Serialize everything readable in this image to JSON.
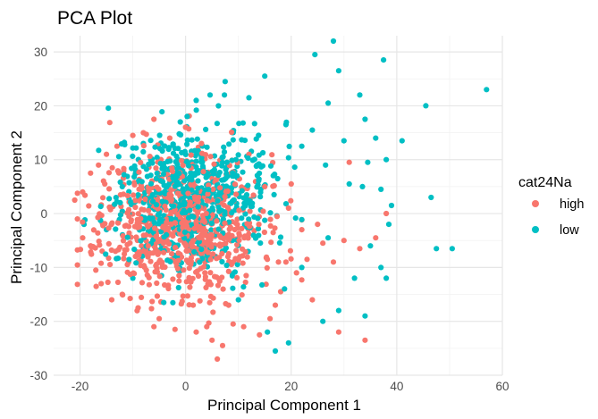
{
  "chart_data": {
    "type": "scatter",
    "title": "PCA Plot",
    "xlabel": "Principal Component 1",
    "ylabel": "Principal Component 2",
    "xlim": [
      -25,
      60
    ],
    "ylim": [
      -30,
      33
    ],
    "x_ticks": [
      -20,
      0,
      20,
      40,
      60
    ],
    "y_ticks": [
      -30,
      -20,
      -10,
      0,
      10,
      20,
      30
    ],
    "grid": true,
    "legend": {
      "title": "cat24Na",
      "placement": "right",
      "entries": [
        {
          "label": "high",
          "color": "#F8766D"
        },
        {
          "label": "low",
          "color": "#00BFC4"
        }
      ]
    },
    "series": [
      {
        "name": "high",
        "color": "#F8766D",
        "points": [
          [
            -21,
            2.5
          ],
          [
            -20.5,
            -1
          ],
          [
            -19.5,
            -4.5
          ],
          [
            -19.5,
            4
          ],
          [
            -18,
            7.5
          ],
          [
            -18,
            -6
          ],
          [
            -17,
            -10.5
          ],
          [
            -16.5,
            9
          ],
          [
            -16,
            -13
          ],
          [
            -15,
            11
          ],
          [
            -14,
            -16
          ],
          [
            -13,
            12.5
          ],
          [
            -12,
            -15
          ],
          [
            -10,
            14.5
          ],
          [
            -9,
            -17.5
          ],
          [
            -8,
            15
          ],
          [
            -6,
            17.5
          ],
          [
            -5,
            -19.5
          ],
          [
            -3,
            14
          ],
          [
            -2,
            -21.5
          ],
          [
            0,
            16
          ],
          [
            2,
            -22
          ],
          [
            3,
            13
          ],
          [
            5,
            -23.5
          ],
          [
            6,
            -27
          ],
          [
            7,
            -24.5
          ],
          [
            9,
            -20.5
          ],
          [
            11,
            -21
          ],
          [
            12,
            11
          ],
          [
            14,
            -22.5
          ],
          [
            15,
            5
          ],
          [
            16,
            -19.5
          ],
          [
            17,
            -17
          ],
          [
            18,
            -14.5
          ],
          [
            19,
            -9
          ],
          [
            19.5,
            1
          ],
          [
            20,
            5.5
          ],
          [
            21,
            -11
          ],
          [
            22,
            -3
          ],
          [
            23,
            -8.5
          ],
          [
            24,
            -16
          ],
          [
            25,
            -2
          ],
          [
            26,
            -5.5
          ],
          [
            28,
            -9
          ],
          [
            29,
            -22
          ],
          [
            30,
            -5
          ],
          [
            31,
            9.5
          ],
          [
            33,
            -6.5
          ],
          [
            34,
            -23.5
          ],
          [
            36,
            -4.5
          ],
          [
            38,
            0
          ]
        ],
        "cloud": {
          "cx": -1,
          "cy": -2,
          "sx": 7.5,
          "sy": 6.5,
          "n": 750,
          "seed": 11
        }
      },
      {
        "name": "low",
        "color": "#00BFC4",
        "points": [
          [
            28,
            32
          ],
          [
            24.5,
            29.5
          ],
          [
            37.5,
            28.5
          ],
          [
            29,
            26.5
          ],
          [
            15,
            25.5
          ],
          [
            7.5,
            24.5
          ],
          [
            57,
            23
          ],
          [
            33,
            22
          ],
          [
            12,
            21.5
          ],
          [
            2,
            21
          ],
          [
            27,
            20.5
          ],
          [
            45.5,
            20
          ],
          [
            34,
            17.5
          ],
          [
            -1,
            17
          ],
          [
            19,
            16.5
          ],
          [
            24,
            15.5
          ],
          [
            36,
            14
          ],
          [
            41,
            13.5
          ],
          [
            30,
            13.5
          ],
          [
            22,
            12.5
          ],
          [
            -8,
            13
          ],
          [
            26.5,
            9
          ],
          [
            34.5,
            9.5
          ],
          [
            38,
            10
          ],
          [
            31,
            5.5
          ],
          [
            33.5,
            5
          ],
          [
            37,
            4.5
          ],
          [
            46.5,
            3
          ],
          [
            39,
            1.5
          ],
          [
            38.5,
            -2
          ],
          [
            27,
            -4.5
          ],
          [
            35,
            -6
          ],
          [
            47.5,
            -6.5
          ],
          [
            50.5,
            -6.5
          ],
          [
            37,
            -10
          ],
          [
            38,
            -12
          ],
          [
            32,
            -12
          ],
          [
            29,
            -18
          ],
          [
            34,
            -19
          ],
          [
            26,
            -20
          ],
          [
            17,
            -25.5
          ],
          [
            19.5,
            -24
          ],
          [
            15.5,
            -22
          ],
          [
            10,
            -16
          ],
          [
            -12,
            5
          ],
          [
            -15,
            -3
          ],
          [
            -10,
            -12
          ],
          [
            22,
            -10
          ]
        ],
        "cloud": {
          "cx": 1,
          "cy": 3,
          "sx": 7.5,
          "sy": 6.5,
          "n": 650,
          "seed": 29
        }
      }
    ]
  }
}
